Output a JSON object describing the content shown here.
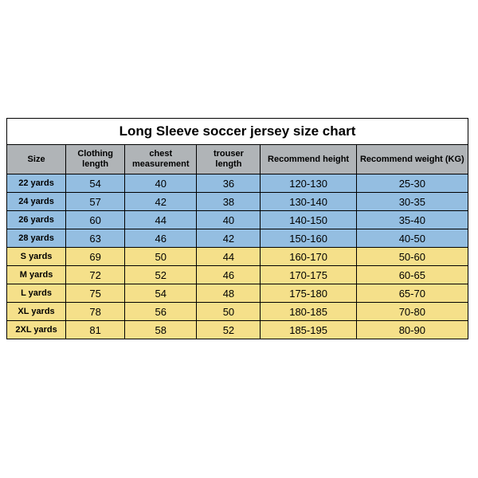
{
  "table": {
    "title": "Long Sleeve soccer jersey size chart",
    "columns": [
      "Size",
      "Clothing length",
      "chest measurement",
      "trouser length",
      "Recommend height",
      "Recommend weight (KG)"
    ],
    "groups": [
      {
        "color": "#94bee1",
        "rows": [
          {
            "size": "22 yards",
            "vals": [
              "54",
              "40",
              "36",
              "120-130",
              "25-30"
            ]
          },
          {
            "size": "24 yards",
            "vals": [
              "57",
              "42",
              "38",
              "130-140",
              "30-35"
            ]
          },
          {
            "size": "26 yards",
            "vals": [
              "60",
              "44",
              "40",
              "140-150",
              "35-40"
            ]
          },
          {
            "size": "28 yards",
            "vals": [
              "63",
              "46",
              "42",
              "150-160",
              "40-50"
            ]
          }
        ]
      },
      {
        "color": "#f5e08a",
        "rows": [
          {
            "size": "S yards",
            "vals": [
              "69",
              "50",
              "44",
              "160-170",
              "50-60"
            ]
          },
          {
            "size": "M yards",
            "vals": [
              "72",
              "52",
              "46",
              "170-175",
              "60-65"
            ]
          },
          {
            "size": "L yards",
            "vals": [
              "75",
              "54",
              "48",
              "175-180",
              "65-70"
            ]
          },
          {
            "size": "XL yards",
            "vals": [
              "78",
              "56",
              "50",
              "180-185",
              "70-80"
            ]
          },
          {
            "size": "2XL yards",
            "vals": [
              "81",
              "58",
              "52",
              "185-195",
              "80-90"
            ]
          }
        ]
      }
    ]
  }
}
